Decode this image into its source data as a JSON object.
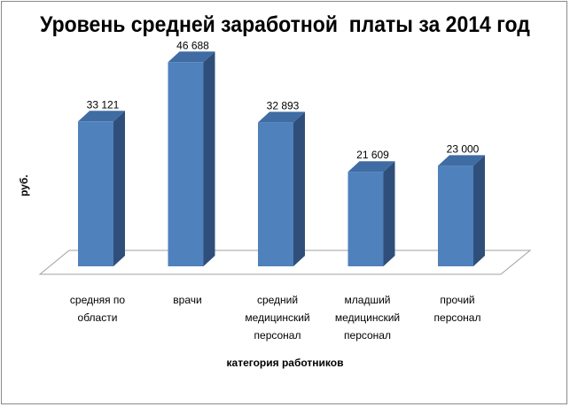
{
  "chart_data": {
    "type": "bar",
    "title": "Уровень средней заработной  платы за 2014 год",
    "ylabel": "руб.",
    "xlabel": "категория работников",
    "categories": [
      [
        "средняя по",
        "области"
      ],
      [
        "врачи"
      ],
      [
        "средний",
        "медицинский",
        "персонал"
      ],
      [
        "младший",
        "медицинский",
        "персонал"
      ],
      [
        "прочий",
        "персонал"
      ]
    ],
    "values": [
      33121,
      46688,
      32893,
      21609,
      23000
    ],
    "data_labels": [
      "33 121",
      "46 688",
      "32 893",
      "21 609",
      "23 000"
    ],
    "ylim": [
      0,
      52000
    ],
    "grid": false,
    "legend": "none",
    "colors": {
      "bar_front": "#4f81bd",
      "bar_side": "#2f4f7a",
      "bar_top": "#3f6ca3",
      "floor": "#ffffff",
      "floor_stroke": "#a0a0a0"
    }
  }
}
